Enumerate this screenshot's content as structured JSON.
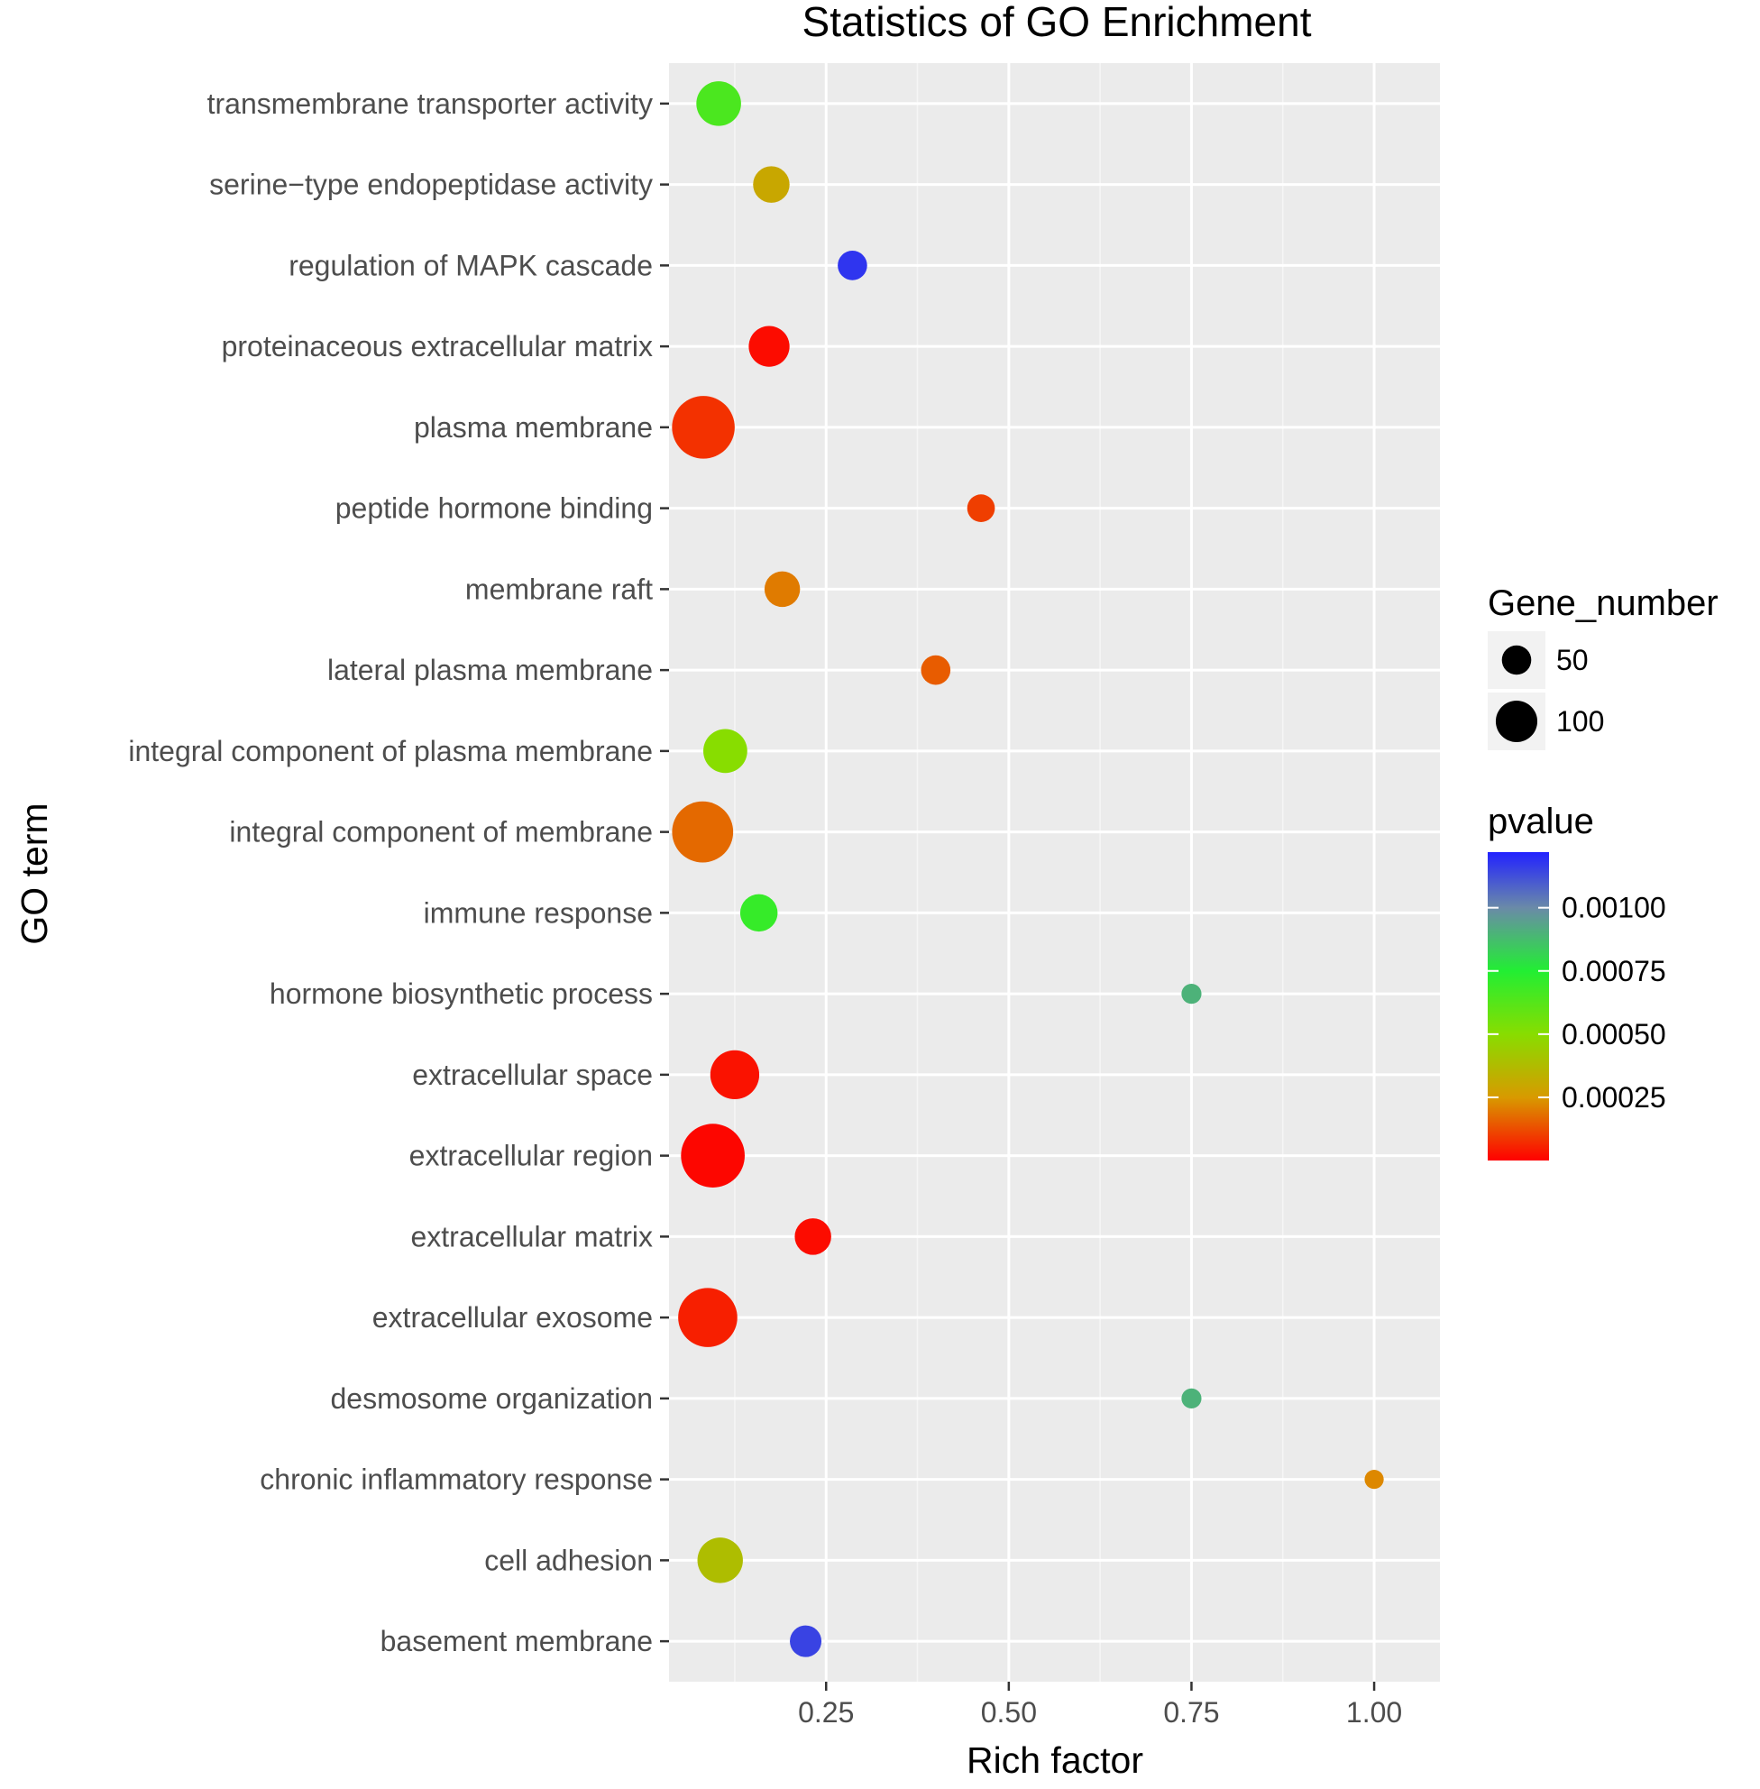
{
  "chart_data": {
    "type": "scatter",
    "title": "Statistics of GO Enrichment",
    "xlabel": "Rich factor",
    "ylabel": "GO term",
    "xlim": [
      0.035,
      1.09
    ],
    "xticks": [
      0.25,
      0.5,
      0.75,
      1.0
    ],
    "xtick_labels": [
      "0.25",
      "0.50",
      "0.75",
      "1.00"
    ],
    "grid": true,
    "points": [
      {
        "term": "transmembrane transporter activity",
        "rich_factor": 0.103,
        "gene_number": 60,
        "pvalue": 0.00065
      },
      {
        "term": "serine−type endopeptidase activity",
        "rich_factor": 0.175,
        "gene_number": 40,
        "pvalue": 0.0003
      },
      {
        "term": "regulation of MAPK cascade",
        "rich_factor": 0.286,
        "gene_number": 26,
        "pvalue": 0.00118
      },
      {
        "term": "proteinaceous extracellular matrix",
        "rich_factor": 0.172,
        "gene_number": 50,
        "pvalue": 2e-05
      },
      {
        "term": "plasma membrane",
        "rich_factor": 0.082,
        "gene_number": 118,
        "pvalue": 8e-05
      },
      {
        "term": "peptide hormone binding",
        "rich_factor": 0.462,
        "gene_number": 23,
        "pvalue": 0.0001
      },
      {
        "term": "membrane raft",
        "rich_factor": 0.19,
        "gene_number": 38,
        "pvalue": 0.0002
      },
      {
        "term": "lateral plasma membrane",
        "rich_factor": 0.4,
        "gene_number": 26,
        "pvalue": 0.00015
      },
      {
        "term": "integral component of plasma membrane",
        "rich_factor": 0.112,
        "gene_number": 58,
        "pvalue": 0.0005
      },
      {
        "term": "integral component of membrane",
        "rich_factor": 0.081,
        "gene_number": 112,
        "pvalue": 0.00017
      },
      {
        "term": "immune response",
        "rich_factor": 0.158,
        "gene_number": 42,
        "pvalue": 0.0007
      },
      {
        "term": "hormone biosynthetic process",
        "rich_factor": 0.75,
        "gene_number": 12,
        "pvalue": 0.0009
      },
      {
        "term": "extracellular space",
        "rich_factor": 0.125,
        "gene_number": 72,
        "pvalue": 3e-05
      },
      {
        "term": "extracellular region",
        "rich_factor": 0.095,
        "gene_number": 122,
        "pvalue": 1e-05
      },
      {
        "term": "extracellular matrix",
        "rich_factor": 0.232,
        "gene_number": 40,
        "pvalue": 2e-05
      },
      {
        "term": "extracellular exosome",
        "rich_factor": 0.088,
        "gene_number": 105,
        "pvalue": 5e-05
      },
      {
        "term": "desmosome organization",
        "rich_factor": 0.75,
        "gene_number": 12,
        "pvalue": 0.0009
      },
      {
        "term": "chronic inflammatory response",
        "rich_factor": 1.0,
        "gene_number": 11,
        "pvalue": 0.00022
      },
      {
        "term": "cell adhesion",
        "rich_factor": 0.105,
        "gene_number": 62,
        "pvalue": 0.00038
      },
      {
        "term": "basement membrane",
        "rich_factor": 0.222,
        "gene_number": 30,
        "pvalue": 0.00115
      }
    ],
    "legend": {
      "size": {
        "title": "Gene_number",
        "entries": [
          {
            "label": "50",
            "value": 50
          },
          {
            "label": "100",
            "value": 100
          }
        ]
      },
      "color": {
        "title": "pvalue",
        "min": 1e-07,
        "max": 0.00122,
        "ticks": [
          {
            "label": "0.00100",
            "value": 0.001
          },
          {
            "label": "0.00075",
            "value": 0.00075
          },
          {
            "label": "0.00050",
            "value": 0.0005
          },
          {
            "label": "0.00025",
            "value": 0.00025
          }
        ],
        "stops": [
          {
            "value": 1e-07,
            "color": "#ff0000"
          },
          {
            "value": 0.00025,
            "color": "#d89a00"
          },
          {
            "value": 0.0005,
            "color": "#88dd00"
          },
          {
            "value": 0.00075,
            "color": "#22ee33"
          },
          {
            "value": 0.001,
            "color": "#6a8aa8"
          },
          {
            "value": 0.00122,
            "color": "#2222ff"
          }
        ]
      }
    }
  }
}
